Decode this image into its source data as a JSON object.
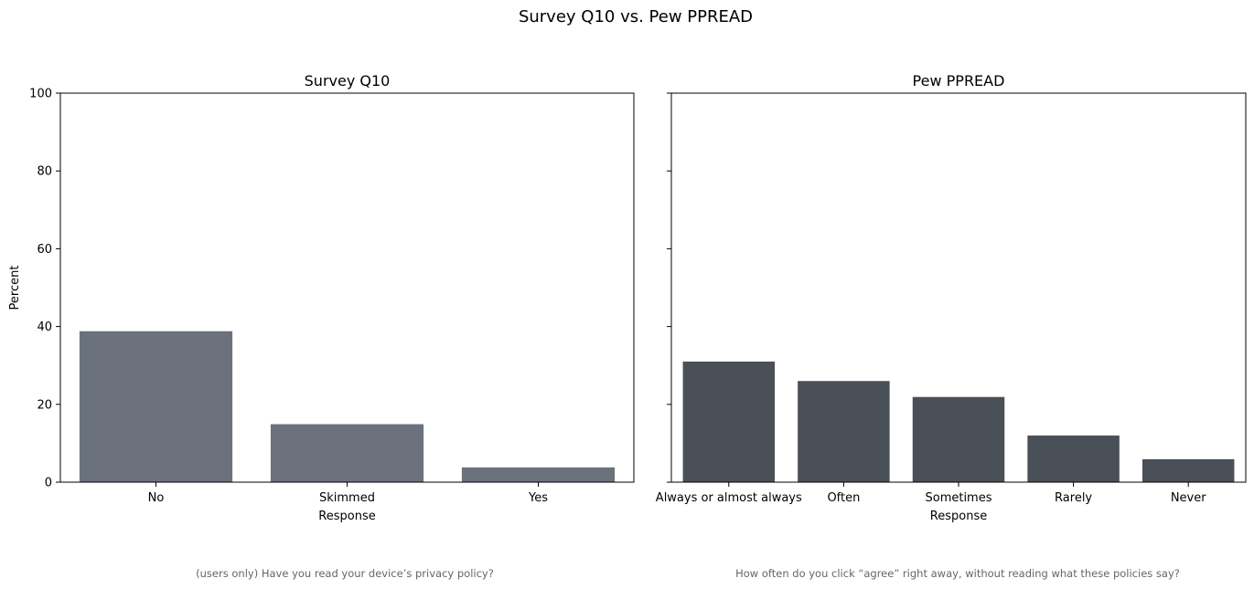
{
  "title": "Survey Q10 vs. Pew PPREAD",
  "shared_y": {
    "label": "Percent",
    "ylim": [
      0,
      100
    ],
    "ticks": [
      0,
      20,
      40,
      60,
      80,
      100
    ]
  },
  "chart_data": [
    {
      "type": "bar",
      "title": "Survey Q10",
      "xlabel": "Response",
      "ylabel": "Percent",
      "ylim": [
        0,
        100
      ],
      "categories": [
        "No",
        "Skimmed",
        "Yes"
      ],
      "values": [
        38.8,
        14.9,
        3.8
      ],
      "color": "#6b727c",
      "caption": "(users only) Have you read your device’s privacy policy?"
    },
    {
      "type": "bar",
      "title": "Pew PPREAD",
      "xlabel": "Response",
      "ylabel": "",
      "ylim": [
        0,
        100
      ],
      "categories": [
        "Always or almost always",
        "Often",
        "Sometimes",
        "Rarely",
        "Never"
      ],
      "values": [
        31.0,
        26.0,
        21.9,
        12.0,
        5.9
      ],
      "color": "#4a5058",
      "caption": "How often do you click “agree” right away, without reading what these policies say?"
    }
  ]
}
